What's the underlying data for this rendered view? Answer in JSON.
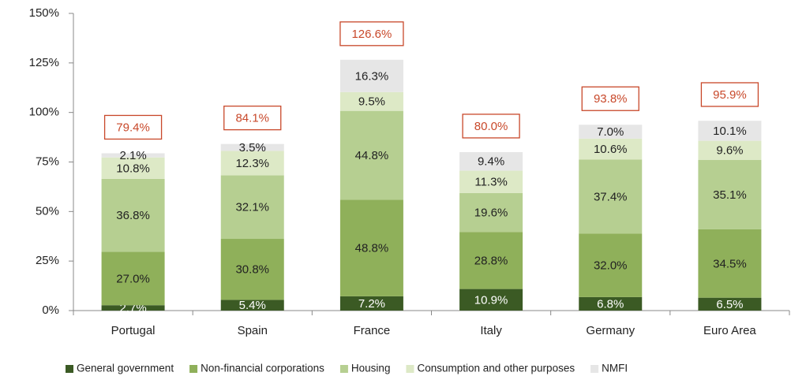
{
  "chart_data": {
    "type": "stacked_bar",
    "categories": [
      "Portugal",
      "Spain",
      "France",
      "Italy",
      "Germany",
      "Euro Area"
    ],
    "series": [
      {
        "name": "General government",
        "color": "#3b5a24",
        "values": [
          2.7,
          5.4,
          7.2,
          10.9,
          6.8,
          6.5
        ],
        "value_labels": [
          "2.7%",
          "5.4%",
          "7.2%",
          "10.9%",
          "6.8%",
          "6.5%"
        ]
      },
      {
        "name": "Non-financial corporations",
        "color": "#8fb05a",
        "values": [
          27.0,
          30.8,
          48.8,
          28.8,
          32.0,
          34.5
        ],
        "value_labels": [
          "27.0%",
          "30.8%",
          "48.8%",
          "28.8%",
          "32.0%",
          "34.5%"
        ]
      },
      {
        "name": "Housing",
        "color": "#b6cf91",
        "values": [
          36.8,
          32.1,
          44.8,
          19.6,
          37.4,
          35.1
        ],
        "value_labels": [
          "36.8%",
          "32.1%",
          "44.8%",
          "19.6%",
          "37.4%",
          "35.1%"
        ]
      },
      {
        "name": "Consumption and other purposes",
        "color": "#dde9c6",
        "values": [
          10.8,
          12.3,
          9.5,
          11.3,
          10.6,
          9.6
        ],
        "value_labels": [
          "10.8%",
          "12.3%",
          "9.5%",
          "11.3%",
          "10.6%",
          "9.6%"
        ]
      },
      {
        "name": "NMFI",
        "color": "#e6e6e6",
        "values": [
          2.1,
          3.5,
          16.3,
          9.4,
          7.0,
          10.1
        ],
        "value_labels": [
          "2.1%",
          "3.5%",
          "16.3%",
          "9.4%",
          "7.0%",
          "10.1%"
        ]
      }
    ],
    "totals": [
      79.4,
      84.1,
      126.6,
      80.0,
      93.8,
      95.9
    ],
    "total_labels": [
      "79.4%",
      "84.1%",
      "126.6%",
      "80.0%",
      "93.8%",
      "95.9%"
    ],
    "ylim": [
      0,
      150
    ],
    "yticks": [
      {
        "value": 0,
        "label": "0%"
      },
      {
        "value": 25,
        "label": "25%"
      },
      {
        "value": 50,
        "label": "50%"
      },
      {
        "value": 75,
        "label": "75%"
      },
      {
        "value": 100,
        "label": "100%"
      },
      {
        "value": 125,
        "label": "125%"
      },
      {
        "value": 150,
        "label": "150%"
      }
    ],
    "grid": false,
    "legend": "bottom"
  }
}
